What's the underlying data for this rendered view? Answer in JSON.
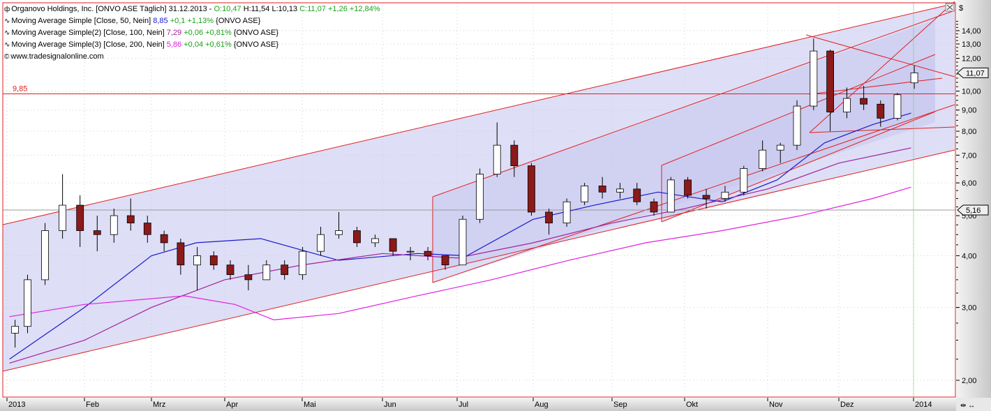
{
  "header": {
    "instrument_icon": "candlestick-icon",
    "title": "Organovo Holdings, Inc. [ONVO ASE  Täglich] 31.12.2013 -",
    "open": "O:10,47",
    "high": "H:11,54",
    "low": "L:10,13",
    "close": "C:11,07 +1,26 +12,84%"
  },
  "indicators": [
    {
      "icon": "wave-icon",
      "label": "Moving Average Simple [Close, 50, Nein]",
      "value": "8,85",
      "change": "+0,1 +1,13%",
      "suffix": "{ONVO ASE}",
      "color": "#1a1acc"
    },
    {
      "icon": "wave-icon",
      "label": "Moving Average Simple(2) [Close, 100, Nein]",
      "value": "7,29",
      "change": "+0,06 +0,81%",
      "suffix": "{ONVO ASE}",
      "color": "#a0229a"
    },
    {
      "icon": "wave-icon",
      "label": "Moving Average Simple(3) [Close, 200, Nein]",
      "value": "5,86",
      "change": "+0,04 +0,61%",
      "suffix": "{ONVO ASE}",
      "color": "#e020e0"
    }
  ],
  "watermark": "www.tradesignalonline.com",
  "currency": "$",
  "level_label": "9,85",
  "last_price_badge": "11,07",
  "line_badge": "5,16",
  "colors": {
    "channel": "#e02020",
    "fill": "#c8c8f0",
    "up": "#ffffff",
    "down": "#8b1a1a",
    "ma50": "#1a1acc",
    "ma100": "#a0229a",
    "ma200": "#e020e0"
  },
  "chart_data": {
    "type": "candlestick",
    "y_scale": "log",
    "ylim": [
      1.9,
      15.5
    ],
    "y_ticks": [
      "2,00",
      "3,00",
      "4,00",
      "5,00",
      "6,00",
      "7,00",
      "8,00",
      "9,00",
      "10,00",
      "12,00",
      "13,00",
      "14,00"
    ],
    "x_ticks": [
      "2013",
      "Feb",
      "Mrz",
      "Apr",
      "Mai",
      "Jun",
      "Jul",
      "Aug",
      "Sep",
      "Okt",
      "Nov",
      "Dez",
      "2014"
    ],
    "grid": true,
    "ohlc": [
      [
        "2013-01-02",
        2.6,
        2.8,
        2.4,
        2.7
      ],
      [
        "2013-01-07",
        2.7,
        3.6,
        2.6,
        3.5
      ],
      [
        "2013-01-14",
        3.5,
        4.8,
        3.4,
        4.6
      ],
      [
        "2013-01-21",
        4.6,
        6.3,
        4.4,
        5.3
      ],
      [
        "2013-01-28",
        5.3,
        5.6,
        4.2,
        4.6
      ],
      [
        "2013-02-04",
        4.6,
        5.0,
        4.1,
        4.5
      ],
      [
        "2013-02-11",
        4.5,
        5.2,
        4.3,
        5.0
      ],
      [
        "2013-02-18",
        5.0,
        5.5,
        4.6,
        4.8
      ],
      [
        "2013-02-25",
        4.8,
        5.0,
        4.3,
        4.5
      ],
      [
        "2013-03-04",
        4.5,
        4.6,
        4.1,
        4.3
      ],
      [
        "2013-03-11",
        4.3,
        4.4,
        3.6,
        3.8
      ],
      [
        "2013-03-18",
        3.8,
        4.2,
        3.3,
        4.0
      ],
      [
        "2013-03-25",
        4.0,
        4.1,
        3.7,
        3.8
      ],
      [
        "2013-04-01",
        3.8,
        3.9,
        3.5,
        3.6
      ],
      [
        "2013-04-08",
        3.6,
        3.8,
        3.3,
        3.5
      ],
      [
        "2013-04-15",
        3.5,
        3.9,
        3.5,
        3.8
      ],
      [
        "2013-04-22",
        3.8,
        3.9,
        3.5,
        3.6
      ],
      [
        "2013-04-29",
        3.6,
        4.2,
        3.5,
        4.1
      ],
      [
        "2013-05-06",
        4.1,
        4.7,
        4.0,
        4.5
      ],
      [
        "2013-05-13",
        4.5,
        5.1,
        4.4,
        4.6
      ],
      [
        "2013-05-20",
        4.6,
        4.7,
        4.2,
        4.3
      ],
      [
        "2013-05-27",
        4.3,
        4.5,
        4.2,
        4.4
      ],
      [
        "2013-06-03",
        4.4,
        4.4,
        4.0,
        4.1
      ],
      [
        "2013-06-10",
        4.1,
        4.2,
        3.9,
        4.1
      ],
      [
        "2013-06-17",
        4.1,
        4.2,
        3.9,
        4.0
      ],
      [
        "2013-06-24",
        4.0,
        4.0,
        3.7,
        3.8
      ],
      [
        "2013-07-01",
        3.8,
        5.0,
        3.8,
        4.9
      ],
      [
        "2013-07-08",
        4.9,
        6.5,
        4.8,
        6.3
      ],
      [
        "2013-07-15",
        6.3,
        8.4,
        6.2,
        7.4
      ],
      [
        "2013-07-22",
        7.4,
        7.6,
        6.2,
        6.6
      ],
      [
        "2013-07-29",
        6.6,
        6.7,
        5.0,
        5.1
      ],
      [
        "2013-08-05",
        5.1,
        5.2,
        4.5,
        4.8
      ],
      [
        "2013-08-12",
        4.8,
        5.5,
        4.7,
        5.4
      ],
      [
        "2013-08-19",
        5.4,
        6.0,
        5.3,
        5.9
      ],
      [
        "2013-08-26",
        5.9,
        6.2,
        5.5,
        5.7
      ],
      [
        "2013-09-02",
        5.7,
        6.0,
        5.5,
        5.8
      ],
      [
        "2013-09-09",
        5.8,
        6.0,
        5.3,
        5.4
      ],
      [
        "2013-09-16",
        5.4,
        5.5,
        5.0,
        5.1
      ],
      [
        "2013-09-23",
        5.1,
        6.2,
        5.1,
        6.1
      ],
      [
        "2013-09-30",
        6.1,
        6.2,
        5.5,
        5.6
      ],
      [
        "2013-10-07",
        5.6,
        5.8,
        5.2,
        5.5
      ],
      [
        "2013-10-14",
        5.5,
        5.9,
        5.4,
        5.7
      ],
      [
        "2013-10-21",
        5.7,
        6.6,
        5.6,
        6.5
      ],
      [
        "2013-10-28",
        6.5,
        7.6,
        6.4,
        7.2
      ],
      [
        "2013-11-04",
        7.2,
        7.5,
        6.7,
        7.4
      ],
      [
        "2013-11-11",
        7.4,
        9.5,
        7.2,
        9.2
      ],
      [
        "2013-11-18",
        9.2,
        13.4,
        9.0,
        12.5
      ],
      [
        "2013-11-25",
        12.5,
        12.6,
        8.0,
        8.9
      ],
      [
        "2013-12-02",
        8.9,
        10.2,
        8.6,
        9.6
      ],
      [
        "2013-12-09",
        9.6,
        10.3,
        9.0,
        9.3
      ],
      [
        "2013-12-16",
        9.3,
        9.5,
        8.2,
        8.6
      ],
      [
        "2013-12-23",
        8.6,
        9.9,
        8.5,
        9.8
      ],
      [
        "2013-12-30",
        10.47,
        11.54,
        10.13,
        11.07
      ]
    ],
    "series": [
      {
        "name": "Moving Average Simple [Close, 50, Nein]",
        "color": "#1a1acc",
        "points": [
          [
            "2013-01-02",
            2.25
          ],
          [
            "2013-02-01",
            3.0
          ],
          [
            "2013-03-01",
            4.0
          ],
          [
            "2013-03-20",
            4.3
          ],
          [
            "2013-04-15",
            4.4
          ],
          [
            "2013-05-15",
            3.9
          ],
          [
            "2013-06-15",
            4.05
          ],
          [
            "2013-07-05",
            4.0
          ],
          [
            "2013-08-01",
            4.9
          ],
          [
            "2013-08-25",
            5.3
          ],
          [
            "2013-09-20",
            5.7
          ],
          [
            "2013-10-15",
            5.4
          ],
          [
            "2013-11-05",
            6.1
          ],
          [
            "2013-11-25",
            7.5
          ],
          [
            "2013-12-15",
            8.3
          ],
          [
            "2013-12-31",
            8.85
          ]
        ]
      },
      {
        "name": "Moving Average Simple(2) [Close, 100, Nein]",
        "color": "#a0229a",
        "points": [
          [
            "2013-01-02",
            2.2
          ],
          [
            "2013-02-01",
            2.5
          ],
          [
            "2013-03-01",
            3.0
          ],
          [
            "2013-04-01",
            3.5
          ],
          [
            "2013-05-01",
            3.8
          ],
          [
            "2013-06-01",
            4.05
          ],
          [
            "2013-07-01",
            3.95
          ],
          [
            "2013-08-01",
            4.3
          ],
          [
            "2013-09-01",
            4.8
          ],
          [
            "2013-10-01",
            5.2
          ],
          [
            "2013-11-01",
            5.8
          ],
          [
            "2013-12-01",
            6.7
          ],
          [
            "2013-12-31",
            7.29
          ]
        ]
      },
      {
        "name": "Moving Average Simple(3) [Close, 200, Nein]",
        "color": "#e020e0",
        "points": [
          [
            "2013-01-02",
            2.85
          ],
          [
            "2013-02-01",
            3.05
          ],
          [
            "2013-03-15",
            3.2
          ],
          [
            "2013-04-05",
            3.05
          ],
          [
            "2013-04-20",
            2.8
          ],
          [
            "2013-05-15",
            2.9
          ],
          [
            "2013-06-15",
            3.2
          ],
          [
            "2013-07-15",
            3.5
          ],
          [
            "2013-08-15",
            3.9
          ],
          [
            "2013-09-15",
            4.3
          ],
          [
            "2013-10-15",
            4.6
          ],
          [
            "2013-11-15",
            5.0
          ],
          [
            "2013-12-15",
            5.5
          ],
          [
            "2013-12-31",
            5.86
          ]
        ]
      }
    ],
    "horizontal_lines": [
      9.85,
      5.16
    ]
  }
}
